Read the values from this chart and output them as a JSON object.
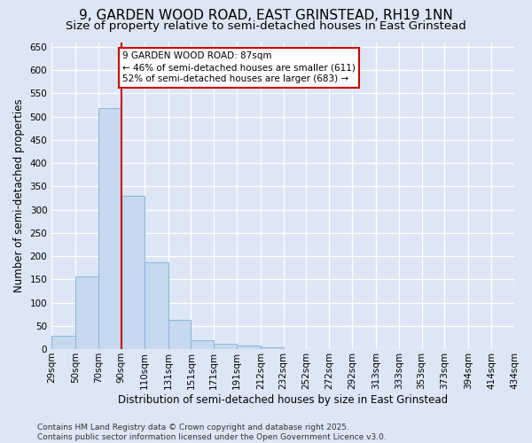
{
  "title": "9, GARDEN WOOD ROAD, EAST GRINSTEAD, RH19 1NN",
  "subtitle": "Size of property relative to semi-detached houses in East Grinstead",
  "xlabel": "Distribution of semi-detached houses by size in East Grinstead",
  "ylabel": "Number of semi-detached properties",
  "bar_color": "#c6d9f0",
  "bar_edge_color": "#8ab4d8",
  "background_color": "#dce6f5",
  "grid_color": "#ffffff",
  "annotation_text": "9 GARDEN WOOD ROAD: 87sqm\n← 46% of semi-detached houses are smaller (611)\n52% of semi-detached houses are larger (683) →",
  "annotation_box_color": "#ffffff",
  "annotation_border_color": "#cc0000",
  "vline_x": 90,
  "vline_color": "#cc0000",
  "bins": [
    29,
    50,
    70,
    90,
    110,
    131,
    151,
    171,
    191,
    212,
    232,
    252,
    272,
    292,
    313,
    333,
    353,
    373,
    394,
    414,
    434
  ],
  "bin_labels": [
    "29sqm",
    "50sqm",
    "70sqm",
    "90sqm",
    "110sqm",
    "131sqm",
    "151sqm",
    "171sqm",
    "191sqm",
    "212sqm",
    "232sqm",
    "252sqm",
    "272sqm",
    "292sqm",
    "313sqm",
    "333sqm",
    "353sqm",
    "373sqm",
    "394sqm",
    "414sqm",
    "434sqm"
  ],
  "counts": [
    28,
    157,
    519,
    330,
    186,
    63,
    20,
    12,
    8,
    3,
    1,
    0,
    0,
    0,
    0,
    1,
    0,
    0,
    0,
    1
  ],
  "ylim": [
    0,
    660
  ],
  "yticks": [
    0,
    50,
    100,
    150,
    200,
    250,
    300,
    350,
    400,
    450,
    500,
    550,
    600,
    650
  ],
  "footer": "Contains HM Land Registry data © Crown copyright and database right 2025.\nContains public sector information licensed under the Open Government Licence v3.0.",
  "title_fontsize": 11,
  "subtitle_fontsize": 9.5,
  "label_fontsize": 8.5,
  "tick_fontsize": 7.5,
  "annot_fontsize": 7.5,
  "footer_fontsize": 6.5
}
